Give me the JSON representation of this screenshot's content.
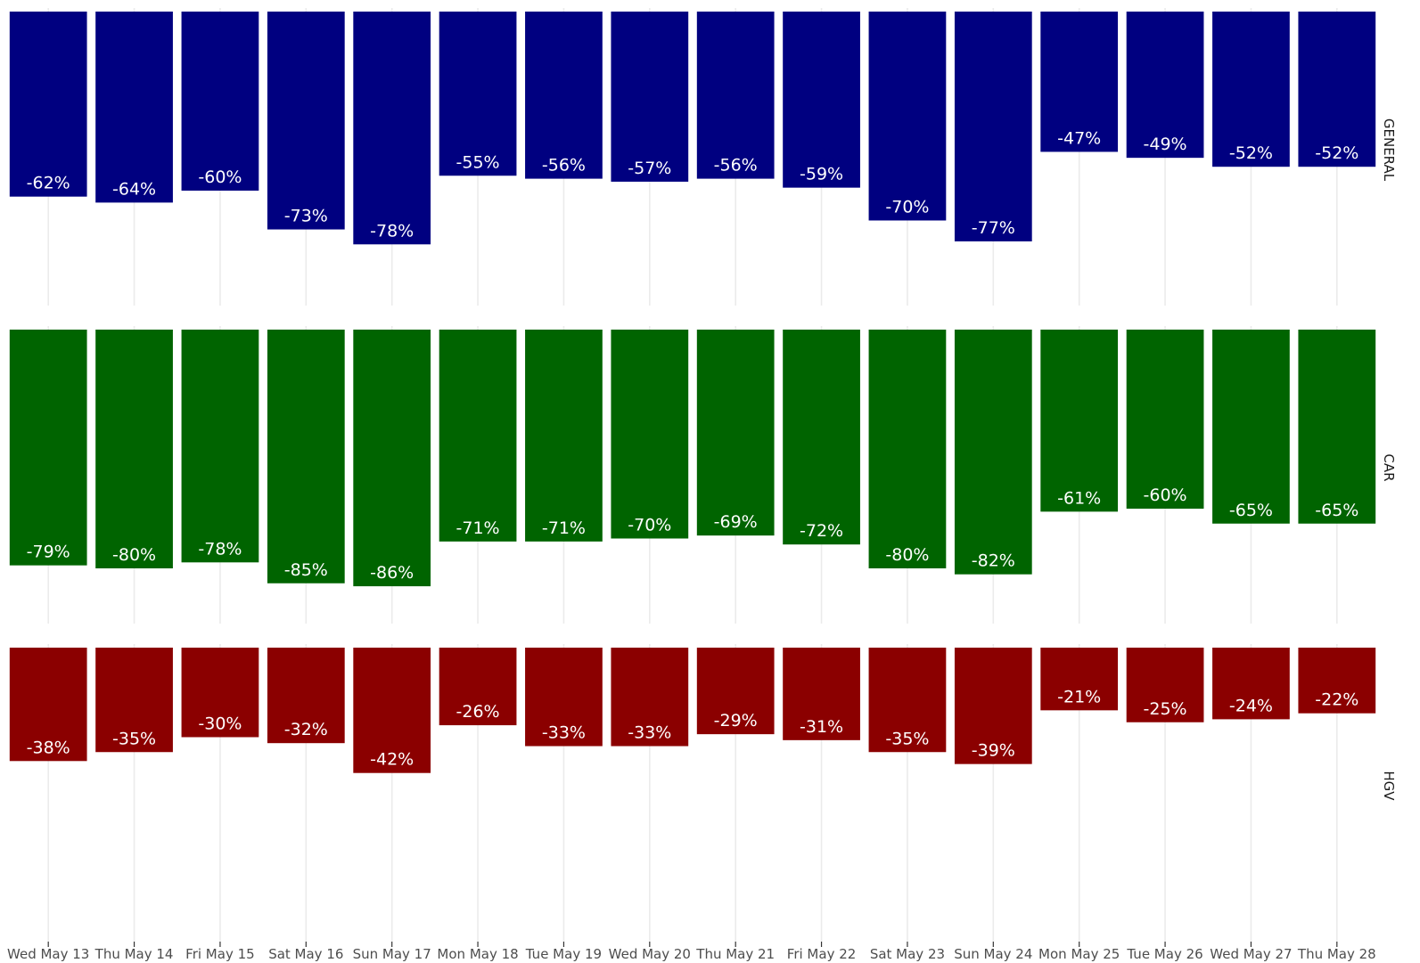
{
  "chart_data": {
    "type": "bar",
    "title": "",
    "xlabel": "",
    "ylabel": "",
    "categories": [
      "Wed May 13",
      "Thu May 14",
      "Fri May 15",
      "Sat May 16",
      "Sun May 17",
      "Mon May 18",
      "Tue May 19",
      "Wed May 20",
      "Thu May 21",
      "Fri May 22",
      "Sat May 23",
      "Sun May 24",
      "Mon May 25",
      "Tue May 26",
      "Wed May 27",
      "Thu May 28"
    ],
    "ylim": [
      -100,
      0
    ],
    "grid": true,
    "series": [
      {
        "name": "GENERAL",
        "color": "#000080",
        "values": [
          -62,
          -64,
          -60,
          -73,
          -78,
          -55,
          -56,
          -57,
          -56,
          -59,
          -70,
          -77,
          -47,
          -49,
          -52,
          -52
        ],
        "labels": [
          "-62%",
          "-64%",
          "-60%",
          "-73%",
          "-78%",
          "-55%",
          "-56%",
          "-57%",
          "-56%",
          "-59%",
          "-70%",
          "-77%",
          "-47%",
          "-49%",
          "-52%",
          "-52%"
        ]
      },
      {
        "name": "CAR",
        "color": "#006400",
        "values": [
          -79,
          -80,
          -78,
          -85,
          -86,
          -71,
          -71,
          -70,
          -69,
          -72,
          -80,
          -82,
          -61,
          -60,
          -65,
          -65
        ],
        "labels": [
          "-79%",
          "-80%",
          "-78%",
          "-85%",
          "-86%",
          "-71%",
          "-71%",
          "-70%",
          "-69%",
          "-72%",
          "-80%",
          "-82%",
          "-61%",
          "-60%",
          "-65%",
          "-65%"
        ]
      },
      {
        "name": "HGV",
        "color": "#8b0000",
        "values": [
          -38,
          -35,
          -30,
          -32,
          -42,
          -26,
          -33,
          -33,
          -29,
          -31,
          -35,
          -39,
          -21,
          -25,
          -24,
          -22
        ],
        "labels": [
          "-38%",
          "-35%",
          "-30%",
          "-32%",
          "-42%",
          "-26%",
          "-33%",
          "-33%",
          "-29%",
          "-31%",
          "-35%",
          "-39%",
          "-21%",
          "-25%",
          "-24%",
          "-22%"
        ]
      }
    ]
  }
}
